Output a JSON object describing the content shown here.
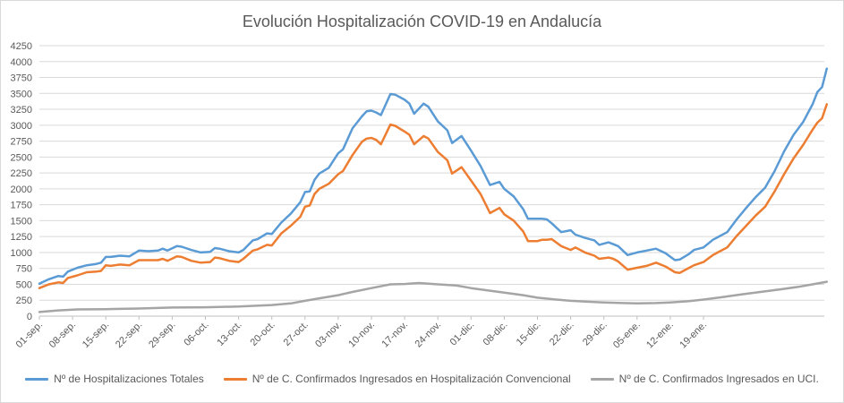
{
  "chart_data": {
    "type": "line",
    "title": "Evolución Hospitalización COVID-19 en Andalucía",
    "xlabel": "",
    "ylabel": "",
    "ylim": [
      0,
      4250
    ],
    "yticks": [
      0,
      250,
      500,
      750,
      1000,
      1250,
      1500,
      1750,
      2000,
      2250,
      2500,
      2750,
      3000,
      3250,
      3500,
      3750,
      4000,
      4250
    ],
    "grid": true,
    "legend_position": "bottom",
    "x_tick_labels": [
      "01-sep.",
      "08-sep.",
      "15-sep.",
      "22-sep.",
      "29-sep.",
      "06-oct.",
      "13-oct.",
      "20-oct.",
      "27-oct.",
      "03-nov.",
      "10-nov.",
      "17-nov.",
      "24-nov.",
      "01-dic.",
      "08-dic.",
      "15-dic.",
      "22-dic.",
      "29-dic.",
      "05-ene.",
      "12-ene.",
      "19-ene."
    ],
    "x_tick_days": [
      0,
      7,
      14,
      21,
      28,
      35,
      42,
      49,
      56,
      63,
      70,
      77,
      84,
      91,
      98,
      105,
      112,
      119,
      126,
      133,
      140
    ],
    "x_range_days": [
      0,
      146
    ],
    "series": [
      {
        "name": "Nº de Hospitalizaciones Totales",
        "color": "#5b9bd5",
        "points": [
          [
            0,
            510
          ],
          [
            2,
            580
          ],
          [
            4,
            630
          ],
          [
            5,
            620
          ],
          [
            6,
            700
          ],
          [
            8,
            760
          ],
          [
            10,
            800
          ],
          [
            12,
            820
          ],
          [
            13,
            840
          ],
          [
            14,
            930
          ],
          [
            15,
            930
          ],
          [
            17,
            950
          ],
          [
            19,
            940
          ],
          [
            21,
            1030
          ],
          [
            23,
            1020
          ],
          [
            25,
            1030
          ],
          [
            26,
            1060
          ],
          [
            27,
            1030
          ],
          [
            29,
            1100
          ],
          [
            30,
            1090
          ],
          [
            32,
            1040
          ],
          [
            34,
            1000
          ],
          [
            36,
            1010
          ],
          [
            37,
            1070
          ],
          [
            38,
            1060
          ],
          [
            40,
            1020
          ],
          [
            42,
            1000
          ],
          [
            43,
            1040
          ],
          [
            45,
            1190
          ],
          [
            46,
            1210
          ],
          [
            48,
            1300
          ],
          [
            49,
            1290
          ],
          [
            51,
            1470
          ],
          [
            53,
            1610
          ],
          [
            55,
            1790
          ],
          [
            56,
            1950
          ],
          [
            57,
            1960
          ],
          [
            58,
            2140
          ],
          [
            59,
            2240
          ],
          [
            61,
            2330
          ],
          [
            63,
            2560
          ],
          [
            64,
            2620
          ],
          [
            66,
            2950
          ],
          [
            68,
            3140
          ],
          [
            69,
            3220
          ],
          [
            70,
            3230
          ],
          [
            71,
            3200
          ],
          [
            72,
            3160
          ],
          [
            74,
            3490
          ],
          [
            75,
            3480
          ],
          [
            77,
            3400
          ],
          [
            78,
            3340
          ],
          [
            79,
            3180
          ],
          [
            81,
            3340
          ],
          [
            82,
            3290
          ],
          [
            84,
            3060
          ],
          [
            86,
            2920
          ],
          [
            87,
            2720
          ],
          [
            89,
            2830
          ],
          [
            91,
            2600
          ],
          [
            93,
            2360
          ],
          [
            95,
            2060
          ],
          [
            97,
            2110
          ],
          [
            98,
            2000
          ],
          [
            100,
            1880
          ],
          [
            102,
            1680
          ],
          [
            103,
            1530
          ],
          [
            105,
            1530
          ],
          [
            106,
            1530
          ],
          [
            107,
            1520
          ],
          [
            108,
            1460
          ],
          [
            110,
            1320
          ],
          [
            112,
            1350
          ],
          [
            113,
            1280
          ],
          [
            115,
            1230
          ],
          [
            117,
            1190
          ],
          [
            118,
            1120
          ],
          [
            120,
            1160
          ],
          [
            121,
            1130
          ],
          [
            122,
            1100
          ],
          [
            124,
            960
          ],
          [
            126,
            1000
          ],
          [
            128,
            1030
          ],
          [
            130,
            1060
          ],
          [
            132,
            990
          ],
          [
            134,
            880
          ],
          [
            135,
            890
          ],
          [
            137,
            980
          ],
          [
            138,
            1040
          ],
          [
            140,
            1080
          ],
          [
            142,
            1200
          ],
          [
            143,
            1240
          ],
          [
            145,
            1320
          ],
          [
            147,
            1520
          ],
          [
            149,
            1700
          ],
          [
            151,
            1870
          ],
          [
            153,
            2020
          ],
          [
            155,
            2280
          ],
          [
            157,
            2590
          ],
          [
            159,
            2850
          ],
          [
            161,
            3050
          ],
          [
            163,
            3330
          ],
          [
            164,
            3520
          ],
          [
            165,
            3600
          ],
          [
            166,
            3890
          ]
        ]
      },
      {
        "name": "Nº de C. Confirmados Ingresados en Hospitalización Convencional",
        "color": "#ed7d31",
        "points": [
          [
            0,
            440
          ],
          [
            2,
            500
          ],
          [
            4,
            530
          ],
          [
            5,
            520
          ],
          [
            6,
            600
          ],
          [
            8,
            640
          ],
          [
            10,
            690
          ],
          [
            12,
            700
          ],
          [
            13,
            710
          ],
          [
            14,
            800
          ],
          [
            15,
            790
          ],
          [
            17,
            810
          ],
          [
            19,
            800
          ],
          [
            21,
            880
          ],
          [
            23,
            880
          ],
          [
            25,
            880
          ],
          [
            26,
            900
          ],
          [
            27,
            870
          ],
          [
            29,
            940
          ],
          [
            30,
            930
          ],
          [
            32,
            870
          ],
          [
            34,
            840
          ],
          [
            36,
            850
          ],
          [
            37,
            920
          ],
          [
            38,
            910
          ],
          [
            40,
            870
          ],
          [
            42,
            850
          ],
          [
            43,
            900
          ],
          [
            45,
            1030
          ],
          [
            46,
            1050
          ],
          [
            48,
            1120
          ],
          [
            49,
            1110
          ],
          [
            51,
            1300
          ],
          [
            53,
            1420
          ],
          [
            55,
            1560
          ],
          [
            56,
            1720
          ],
          [
            57,
            1740
          ],
          [
            58,
            1920
          ],
          [
            59,
            2000
          ],
          [
            61,
            2080
          ],
          [
            63,
            2230
          ],
          [
            64,
            2280
          ],
          [
            66,
            2530
          ],
          [
            68,
            2740
          ],
          [
            69,
            2790
          ],
          [
            70,
            2800
          ],
          [
            71,
            2770
          ],
          [
            72,
            2700
          ],
          [
            74,
            3010
          ],
          [
            75,
            2990
          ],
          [
            77,
            2900
          ],
          [
            78,
            2850
          ],
          [
            79,
            2700
          ],
          [
            81,
            2830
          ],
          [
            82,
            2790
          ],
          [
            84,
            2580
          ],
          [
            86,
            2450
          ],
          [
            87,
            2240
          ],
          [
            89,
            2340
          ],
          [
            91,
            2130
          ],
          [
            93,
            1920
          ],
          [
            95,
            1620
          ],
          [
            97,
            1700
          ],
          [
            98,
            1600
          ],
          [
            100,
            1500
          ],
          [
            102,
            1330
          ],
          [
            103,
            1180
          ],
          [
            105,
            1180
          ],
          [
            106,
            1200
          ],
          [
            107,
            1200
          ],
          [
            108,
            1210
          ],
          [
            110,
            1100
          ],
          [
            112,
            1040
          ],
          [
            113,
            1080
          ],
          [
            115,
            1000
          ],
          [
            117,
            950
          ],
          [
            118,
            900
          ],
          [
            120,
            920
          ],
          [
            121,
            900
          ],
          [
            122,
            860
          ],
          [
            124,
            730
          ],
          [
            126,
            760
          ],
          [
            128,
            790
          ],
          [
            130,
            840
          ],
          [
            132,
            780
          ],
          [
            134,
            690
          ],
          [
            135,
            680
          ],
          [
            137,
            760
          ],
          [
            138,
            800
          ],
          [
            140,
            850
          ],
          [
            142,
            960
          ],
          [
            143,
            1000
          ],
          [
            145,
            1080
          ],
          [
            147,
            1260
          ],
          [
            149,
            1420
          ],
          [
            151,
            1580
          ],
          [
            153,
            1720
          ],
          [
            155,
            1960
          ],
          [
            157,
            2230
          ],
          [
            159,
            2480
          ],
          [
            161,
            2690
          ],
          [
            163,
            2930
          ],
          [
            164,
            3040
          ],
          [
            165,
            3110
          ],
          [
            166,
            3330
          ]
        ]
      },
      {
        "name": "Nº de C. Confirmados Ingresados en UCI.",
        "color": "#a5a5a5",
        "points": [
          [
            0,
            65
          ],
          [
            4,
            90
          ],
          [
            8,
            105
          ],
          [
            14,
            110
          ],
          [
            21,
            120
          ],
          [
            28,
            135
          ],
          [
            35,
            140
          ],
          [
            42,
            150
          ],
          [
            49,
            175
          ],
          [
            53,
            200
          ],
          [
            56,
            240
          ],
          [
            59,
            280
          ],
          [
            63,
            330
          ],
          [
            66,
            380
          ],
          [
            70,
            440
          ],
          [
            74,
            500
          ],
          [
            77,
            505
          ],
          [
            80,
            520
          ],
          [
            84,
            500
          ],
          [
            88,
            480
          ],
          [
            91,
            440
          ],
          [
            95,
            400
          ],
          [
            98,
            370
          ],
          [
            102,
            330
          ],
          [
            105,
            290
          ],
          [
            109,
            260
          ],
          [
            112,
            240
          ],
          [
            116,
            225
          ],
          [
            119,
            215
          ],
          [
            123,
            205
          ],
          [
            126,
            200
          ],
          [
            130,
            205
          ],
          [
            133,
            215
          ],
          [
            137,
            235
          ],
          [
            140,
            260
          ],
          [
            144,
            300
          ],
          [
            148,
            340
          ],
          [
            152,
            380
          ],
          [
            156,
            420
          ],
          [
            160,
            460
          ],
          [
            163,
            500
          ],
          [
            166,
            540
          ]
        ]
      }
    ]
  }
}
